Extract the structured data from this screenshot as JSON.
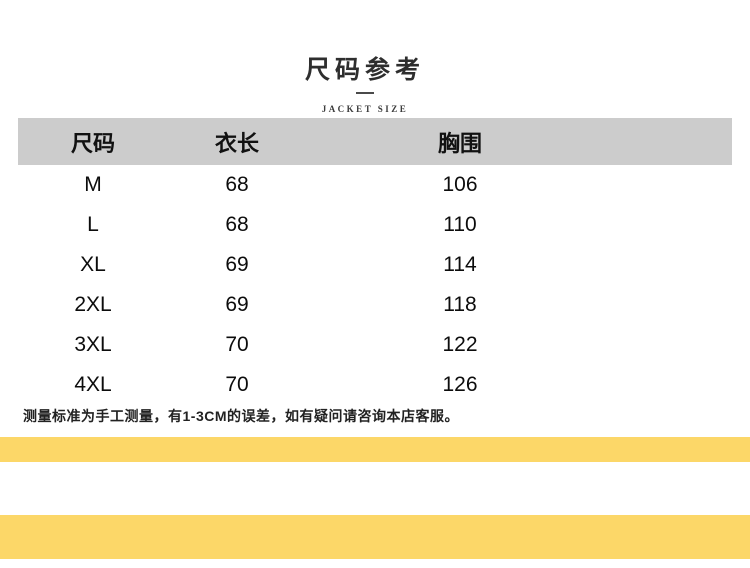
{
  "title_block": {
    "title": "尺码参考",
    "subtitle": "JACKET SIZE"
  },
  "size_table": {
    "headers": {
      "size": "尺码",
      "length": "衣长",
      "chest": "胸围"
    },
    "rows": [
      {
        "size": "M",
        "length": "68",
        "chest": "106"
      },
      {
        "size": "L",
        "length": "68",
        "chest": "110"
      },
      {
        "size": "XL",
        "length": "69",
        "chest": "114"
      },
      {
        "size": "2XL",
        "length": "69",
        "chest": "118"
      },
      {
        "size": "3XL",
        "length": "70",
        "chest": "122"
      },
      {
        "size": "4XL",
        "length": "70",
        "chest": "126"
      }
    ]
  },
  "note": "测量标准为手工测量，有1-3CM的误差，如有疑问请咨询本店客服。",
  "colors": {
    "table_header_bg": "#cccccc",
    "accent_yellow": "#fcd768",
    "text_dark": "#222222"
  }
}
